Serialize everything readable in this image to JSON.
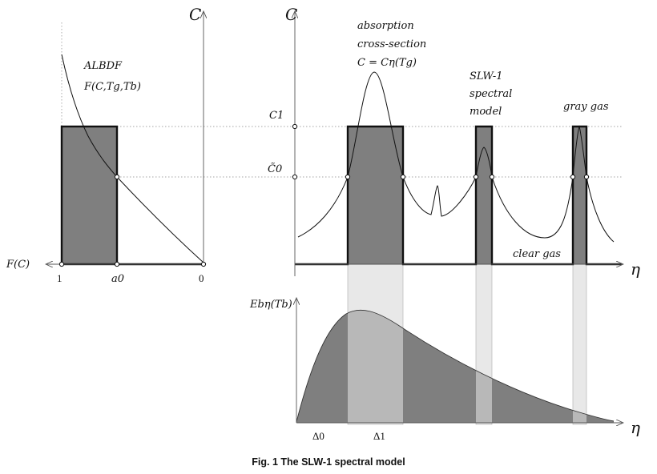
{
  "caption": "Fig. 1   The SLW-1 spectral model",
  "left_panel": {
    "y_axis_label": "C",
    "x_axis_label": "F(C)",
    "curve_label_line1": "ALBDF",
    "curve_label_line2": "F(C,Tg,Tb)",
    "tick_1": "1",
    "tick_a0": "a0",
    "tick_0": "0"
  },
  "right_panel": {
    "y_axis_label": "C",
    "x_axis_label": "η",
    "level_C1": "C1",
    "level_C0": "C̃0",
    "annotation_absorption": [
      "absorption",
      "cross-section",
      "C = Cη(Tg)"
    ],
    "annotation_model": [
      "SLW-1",
      "spectral",
      "model"
    ],
    "annotation_gray_gas": "gray gas",
    "annotation_clear_gas": "clear gas"
  },
  "bottom_panel": {
    "y_axis_label": "Ebη(Tb)",
    "x_axis_label": "η",
    "tick_delta0": "Δ0",
    "tick_delta1": "Δ1"
  },
  "colors": {
    "gray_fill": "#7f7f7f",
    "light_band": "#e8e8e8",
    "mid_band": "#b8b8b8",
    "line": "#111111",
    "dotted": "#888888"
  }
}
